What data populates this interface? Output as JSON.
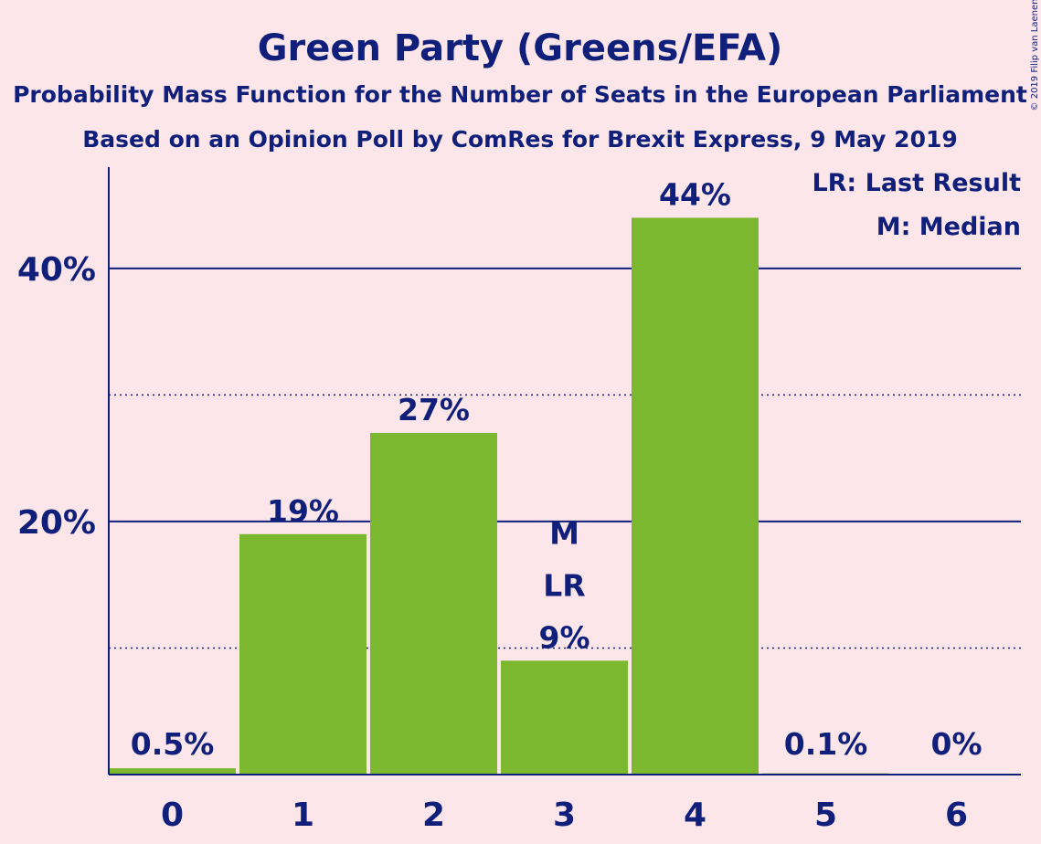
{
  "chart_data": {
    "type": "bar",
    "title": "Green Party (Greens/EFA)",
    "subtitle": "Probability Mass Function for the Number of Seats in the European Parliament",
    "subtitle2": "Based on an Opinion Poll by ComRes for Brexit Express, 9 May 2019",
    "categories": [
      "0",
      "1",
      "2",
      "3",
      "4",
      "5",
      "6"
    ],
    "values": [
      0.5,
      19,
      27,
      9,
      44,
      0.1,
      0
    ],
    "value_labels": [
      "0.5%",
      "19%",
      "27%",
      "9%",
      "44%",
      "0.1%",
      "0%"
    ],
    "ylim": [
      0,
      48
    ],
    "y_ticks": [
      {
        "value": 20,
        "label": "20%"
      },
      {
        "value": 40,
        "label": "40%"
      }
    ],
    "grid_major": [
      20,
      40
    ],
    "grid_minor": [
      10,
      30
    ],
    "markers": {
      "median": {
        "category": "3",
        "label": "M"
      },
      "last_result": {
        "category": "3",
        "label": "LR"
      }
    },
    "legend": {
      "placement": "top-right",
      "items": [
        "LR: Last Result",
        "M: Median"
      ]
    },
    "copyright": "© 2019 Filip van Laenen",
    "colors": {
      "bar": "#7cb82f",
      "text": "#0f1f7a",
      "background": "#fde6ea"
    }
  }
}
